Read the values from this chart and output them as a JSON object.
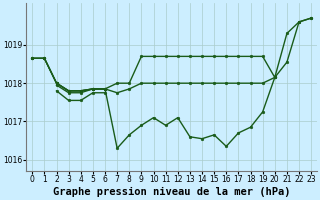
{
  "background_color": "#cceeff",
  "grid_color": "#aacccc",
  "line_color": "#1a5c1a",
  "ylim": [
    1015.7,
    1020.1
  ],
  "xlim": [
    -0.5,
    23.5
  ],
  "yticks": [
    1016,
    1017,
    1018,
    1019
  ],
  "xtick_labels": [
    "0",
    "1",
    "2",
    "3",
    "4",
    "5",
    "6",
    "7",
    "8",
    "9",
    "10",
    "11",
    "12",
    "13",
    "14",
    "15",
    "16",
    "17",
    "18",
    "19",
    "20",
    "21",
    "22",
    "23"
  ],
  "xlabel": "Graphe pression niveau de la mer (hPa)",
  "figsize": [
    3.2,
    2.0
  ],
  "dpi": 100,
  "xlabel_fontsize": 7.5,
  "tick_fontsize": 5.5,
  "marker_size": 2.0,
  "line_width": 1.0,
  "series": {
    "line_up": {
      "x": [
        0,
        1,
        2,
        3,
        4,
        5,
        6,
        7,
        8,
        9,
        10,
        11,
        12,
        13,
        14,
        15,
        16,
        17,
        18,
        19,
        20,
        21,
        22,
        23
      ],
      "y": [
        1018.65,
        1018.65,
        1018.0,
        1017.8,
        1017.8,
        1017.85,
        1017.85,
        1018.0,
        1018.0,
        1018.7,
        1018.7,
        1018.7,
        1018.7,
        1018.7,
        1018.7,
        1018.7,
        1018.7,
        1018.7,
        1018.7,
        1018.7,
        1018.15,
        1019.3,
        1019.6,
        1019.7
      ]
    },
    "line_down": {
      "x": [
        0,
        1,
        2,
        3,
        4,
        5,
        6,
        7,
        8,
        9,
        10,
        11,
        12,
        13,
        14,
        15,
        16,
        17,
        18,
        19,
        20,
        21,
        22,
        23
      ],
      "y": [
        1018.65,
        1018.65,
        1018.0,
        1017.8,
        1017.8,
        1017.85,
        1017.85,
        1016.3,
        1016.65,
        1016.9,
        1017.1,
        1016.9,
        1017.1,
        1016.6,
        1016.55,
        1016.65,
        1016.35,
        1016.7,
        1016.85,
        1017.25,
        1018.15,
        1018.55,
        1019.6,
        1019.7
      ]
    },
    "line_mid": {
      "x": [
        0,
        1,
        2,
        3,
        4,
        5,
        6,
        7,
        8,
        9,
        10,
        11,
        12,
        13,
        14,
        15,
        16,
        17,
        18,
        19,
        20
      ],
      "y": [
        1018.65,
        1018.65,
        1018.0,
        1017.8,
        1017.8,
        1017.85,
        1017.85,
        1017.75,
        1017.85,
        1018.0,
        1018.0,
        1018.0,
        1018.0,
        1018.0,
        1018.0,
        1018.0,
        1018.0,
        1018.0,
        1018.0,
        1018.0,
        1018.15
      ]
    },
    "line_short1": {
      "x": [
        2,
        3,
        4,
        5,
        6
      ],
      "y": [
        1017.8,
        1017.55,
        1017.55,
        1017.75,
        1017.75
      ]
    },
    "line_short2": {
      "x": [
        2,
        3,
        4,
        5,
        6
      ],
      "y": [
        1017.95,
        1017.75,
        1017.75,
        1017.85,
        1017.85
      ]
    }
  }
}
